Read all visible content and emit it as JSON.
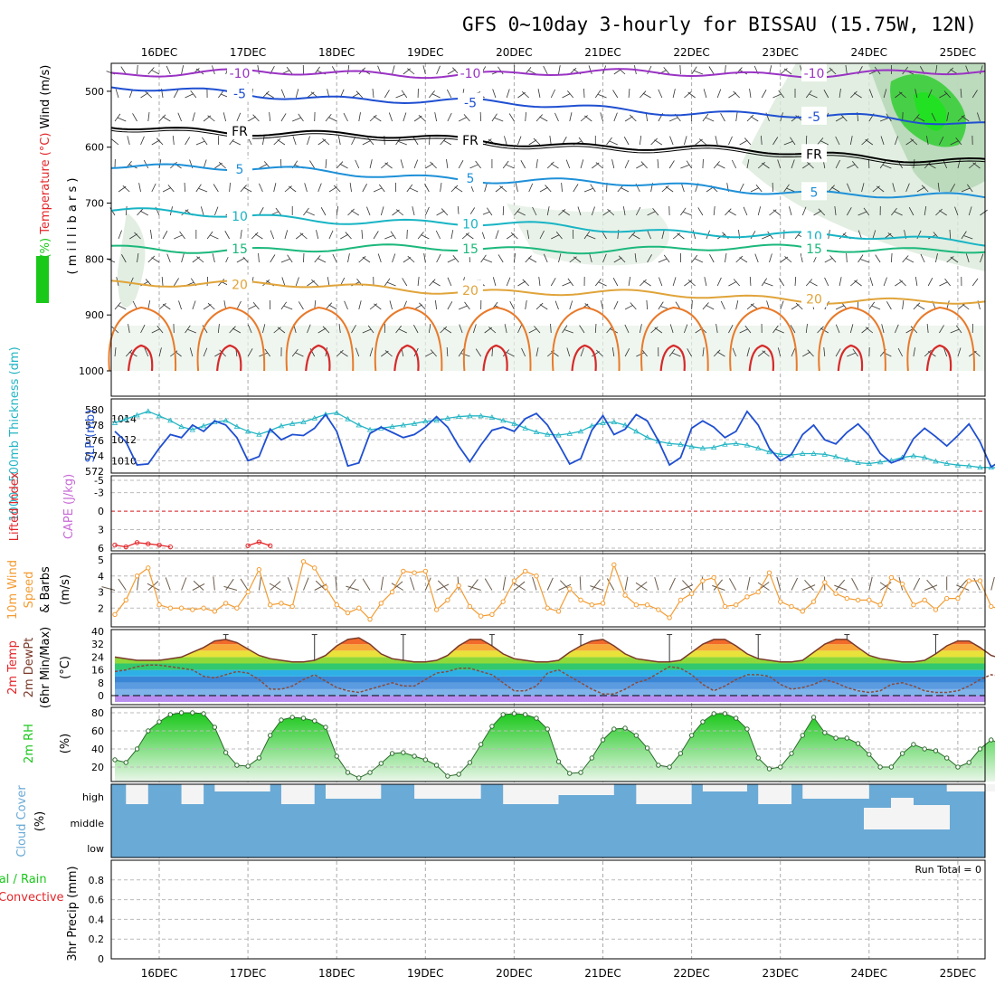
{
  "title": "GFS 0~10day 3-hourly for BISSAU (15.75W, 12N)",
  "dates": [
    "16DEC",
    "17DEC",
    "18DEC",
    "19DEC",
    "20DEC",
    "21DEC",
    "22DEC",
    "23DEC",
    "24DEC",
    "25DEC"
  ],
  "colors": {
    "temp_red": "#e3262a",
    "wind_blue": "#1f4fd1",
    "thick_cyan": "#22b5c4",
    "rh_green": "#1ac81a",
    "orange": "#f39c32",
    "purple": "#9a33c4",
    "sky": "#6aaad6",
    "purple_band": "#b98ef0"
  },
  "chart_data": [
    {
      "type": "contour",
      "panel": "upper_air",
      "ylabel_parts": [
        "Wind (m/s)",
        "Temperature (°C)",
        "RH (%)"
      ],
      "yunit": "( m i l l i b a r s )",
      "yticks": [
        500,
        600,
        700,
        800,
        900,
        1000
      ],
      "ylim": [
        1000,
        450
      ],
      "isotherms": [
        {
          "label": "-10",
          "level_mb": 468,
          "color": "#9a33c4"
        },
        {
          "label": "-5",
          "level_mb": 495,
          "color": "#1f4fd1"
        },
        {
          "label": "FR",
          "level_mb": 562,
          "color": "#000000"
        },
        {
          "label": "5",
          "level_mb": 630,
          "color": "#1e90d8"
        },
        {
          "label": "10",
          "level_mb": 715,
          "color": "#18b4c4"
        },
        {
          "label": "15",
          "level_mb": 782,
          "color": "#1cb87c"
        },
        {
          "label": "20",
          "level_mb": 840,
          "color": "#e0a43a"
        }
      ]
    },
    {
      "type": "line",
      "panel": "thickness_slp",
      "ylabel_left": "1000~500mb Thickness (dm)",
      "ylabel_right": "SLP (mb)",
      "yticks_thickness": [
        572,
        574,
        576,
        578,
        580
      ],
      "yticks_slp": [
        1010,
        1012,
        1014
      ],
      "series": [
        {
          "name": "Thickness",
          "color": "#22b5c4",
          "values": [
            578.3,
            578.8,
            579.3,
            579.8,
            579.2,
            578.6,
            577.8,
            577.4,
            577.9,
            578.4,
            578.6,
            577.8,
            577.2,
            576.8,
            577.3,
            577.9,
            578.2,
            578.4,
            578.9,
            579.4,
            579.6,
            578.8,
            578.0,
            577.4,
            577.6,
            577.8,
            578.0,
            578.2,
            578.5,
            578.6,
            578.9,
            579.1,
            579.2,
            579.2,
            579.0,
            578.6,
            578.2,
            577.6,
            577.1,
            576.8,
            576.7,
            576.9,
            577.2,
            577.9,
            578.3,
            578.4,
            578.0,
            577.2,
            576.4,
            575.9,
            575.6,
            575.5,
            575.2,
            575.0,
            575.1,
            575.5,
            575.6,
            575.4,
            575.0,
            574.5,
            574.2,
            574.1,
            574.3,
            574.3,
            574.2,
            573.9,
            573.5,
            573.1,
            573.0,
            573.2,
            573.4,
            573.8,
            574.0,
            573.8,
            573.3,
            573.0,
            572.8,
            572.7,
            572.5,
            572.5,
            572.4,
            572.3
          ]
        },
        {
          "name": "SLP",
          "color": "#1f4fd1",
          "values": [
            1012.8,
            1011.8,
            1009.6,
            1009.7,
            1011.2,
            1012.5,
            1012.2,
            1013.4,
            1012.8,
            1013.8,
            1013.4,
            1012.2,
            1010.0,
            1010.4,
            1013.0,
            1012.0,
            1012.5,
            1012.4,
            1013.1,
            1014.4,
            1012.8,
            1009.5,
            1009.8,
            1012.6,
            1013.2,
            1012.7,
            1012.2,
            1012.5,
            1013.2,
            1014.2,
            1013.2,
            1011.4,
            1009.9,
            1011.5,
            1012.9,
            1013.2,
            1012.8,
            1014.0,
            1014.5,
            1013.4,
            1011.6,
            1009.7,
            1010.2,
            1012.9,
            1014.3,
            1012.5,
            1013.0,
            1014.4,
            1013.8,
            1011.9,
            1009.6,
            1010.3,
            1013.1,
            1013.8,
            1013.2,
            1012.2,
            1012.8,
            1014.7,
            1013.4,
            1011.2,
            1010.0,
            1010.6,
            1012.5,
            1013.4,
            1012.0,
            1011.6,
            1012.7,
            1013.5,
            1012.4,
            1010.7,
            1009.8,
            1010.2,
            1012.1,
            1013.1,
            1012.3,
            1011.4,
            1012.4,
            1013.5,
            1011.8,
            1009.4,
            1010.1,
            1012.4,
            1011.6,
            1011.8,
            1012.6,
            1012.8,
            1013.3
          ]
        }
      ]
    },
    {
      "type": "line",
      "panel": "lifted_index_cape",
      "ylabel_left": "Lifted Index",
      "ylabel_right": "CAPE (J/kg)",
      "yticks": [
        -5,
        -3,
        0,
        3,
        6
      ],
      "zero_line": 0,
      "series": [
        {
          "name": "Lifted Index",
          "color": "#e3262a",
          "segments": [
            [
              [
                0,
                5.5
              ],
              [
                1,
                5.8
              ],
              [
                2,
                5.1
              ],
              [
                3,
                5.3
              ],
              [
                4,
                5.5
              ],
              [
                5,
                5.8
              ]
            ],
            [
              [
                12,
                5.6
              ],
              [
                13,
                5.0
              ],
              [
                14,
                5.6
              ]
            ],
            [
              [
                83,
                5.5
              ],
              [
                84,
                5.8
              ]
            ]
          ]
        }
      ]
    },
    {
      "type": "line",
      "panel": "wind10m",
      "ylabel": "10m Wind Speed & Barbs (m/s)",
      "yticks": [
        2,
        3,
        4,
        5
      ],
      "series": [
        {
          "name": "Speed",
          "color": "#f39c32",
          "values": [
            1.6,
            2.5,
            4.0,
            4.5,
            2.2,
            2.0,
            2.0,
            1.9,
            2.0,
            1.8,
            2.3,
            2.0,
            3.0,
            4.4,
            2.2,
            2.3,
            2.1,
            4.9,
            4.5,
            3.3,
            2.2,
            1.7,
            2.0,
            1.3,
            2.3,
            3.0,
            4.3,
            4.2,
            4.3,
            1.9,
            2.5,
            3.4,
            2.1,
            1.5,
            1.6,
            2.4,
            3.7,
            4.3,
            4.0,
            2.0,
            1.8,
            3.2,
            2.5,
            2.2,
            2.3,
            4.7,
            2.8,
            2.2,
            2.2,
            1.9,
            1.4,
            2.5,
            2.9,
            3.7,
            3.9,
            2.1,
            2.2,
            2.7,
            3.0,
            4.2,
            2.4,
            2.1,
            1.8,
            2.4,
            3.6,
            2.9,
            2.6,
            2.5,
            2.5,
            2.2,
            3.9,
            3.5,
            2.2,
            2.5,
            1.9,
            2.6,
            2.6,
            3.7,
            3.7,
            2.1,
            1.9,
            2.4,
            2.1,
            3.7,
            3.5,
            2.0,
            2.2,
            2.8
          ]
        }
      ]
    },
    {
      "type": "area",
      "panel": "temperature",
      "ylabel": "2m Temp 2m DewPt (6hr Min/Max) (°C)",
      "yticks": [
        0,
        8,
        16,
        24,
        32,
        40
      ],
      "series": [
        {
          "name": "2m Temp",
          "color": "#7a3a2a",
          "values": [
            24,
            23,
            22,
            22,
            22,
            23,
            24,
            27,
            30,
            34,
            35,
            33,
            29,
            25,
            23,
            22,
            21,
            21,
            22,
            25,
            31,
            35,
            36,
            32,
            26,
            23,
            22,
            21,
            21,
            22,
            25,
            31,
            35,
            35,
            31,
            26,
            23,
            22,
            21,
            21,
            22,
            27,
            31,
            34,
            35,
            31,
            26,
            23,
            22,
            21,
            21,
            22,
            27,
            32,
            35,
            35,
            31,
            26,
            23,
            22,
            21,
            21,
            22,
            27,
            32,
            35,
            35,
            30,
            25,
            23,
            22,
            21,
            21,
            22,
            26,
            31,
            34,
            34,
            30,
            25,
            23,
            22,
            21,
            20,
            20,
            20
          ]
        },
        {
          "name": "2m DewPt",
          "color": "#8a4a3a",
          "values": [
            15,
            16,
            18,
            19,
            19,
            18,
            17,
            16,
            12,
            11,
            13,
            15,
            14,
            10,
            4,
            4,
            6,
            10,
            13,
            9,
            5,
            3,
            2,
            4,
            6,
            8,
            6,
            6,
            10,
            14,
            15,
            17,
            17,
            15,
            13,
            8,
            3,
            3,
            6,
            14,
            16,
            12,
            8,
            4,
            1,
            1,
            4,
            8,
            10,
            14,
            18,
            17,
            13,
            7,
            3,
            6,
            10,
            13,
            13,
            12,
            7,
            4,
            5,
            7,
            10,
            8,
            5,
            3,
            2,
            3,
            7,
            8,
            6,
            3,
            2,
            2,
            3,
            6,
            10,
            13,
            12,
            10,
            7,
            8,
            10,
            13,
            14
          ]
        }
      ]
    },
    {
      "type": "area",
      "panel": "rh2m",
      "ylabel": "2m RH (%)",
      "yticks": [
        20,
        40,
        60,
        80
      ],
      "series": [
        {
          "name": "2m RH",
          "color": "#1ac81a",
          "values": [
            28,
            25,
            40,
            60,
            70,
            78,
            80,
            80,
            79,
            64,
            36,
            22,
            21,
            30,
            55,
            72,
            75,
            74,
            71,
            64,
            32,
            14,
            8,
            14,
            24,
            35,
            36,
            32,
            28,
            22,
            10,
            12,
            25,
            45,
            65,
            78,
            79,
            78,
            74,
            62,
            26,
            13,
            14,
            30,
            50,
            62,
            63,
            55,
            41,
            22,
            20,
            35,
            55,
            70,
            79,
            79,
            74,
            62,
            30,
            18,
            20,
            35,
            55,
            75,
            58,
            52,
            52,
            46,
            34,
            20,
            20,
            35,
            45,
            40,
            38,
            30,
            20,
            25,
            40,
            50,
            45,
            55,
            30,
            18,
            20,
            35,
            55,
            66,
            65,
            73
          ]
        }
      ]
    },
    {
      "type": "bar",
      "panel": "cloud_cover",
      "ylabel": "Cloud Cover (%)",
      "layers": [
        "high",
        "middle",
        "low"
      ],
      "base_color": "#6aaad6",
      "clear_color": "#f4f4f4"
    },
    {
      "type": "bar",
      "panel": "precip",
      "ylabel_parts": [
        "Total / Rain",
        "Convective",
        "3hr Precip (mm)"
      ],
      "yticks": [
        0,
        0.2,
        0.4,
        0.6,
        0.8
      ],
      "annotation": "Run Total = 0",
      "values": []
    }
  ]
}
